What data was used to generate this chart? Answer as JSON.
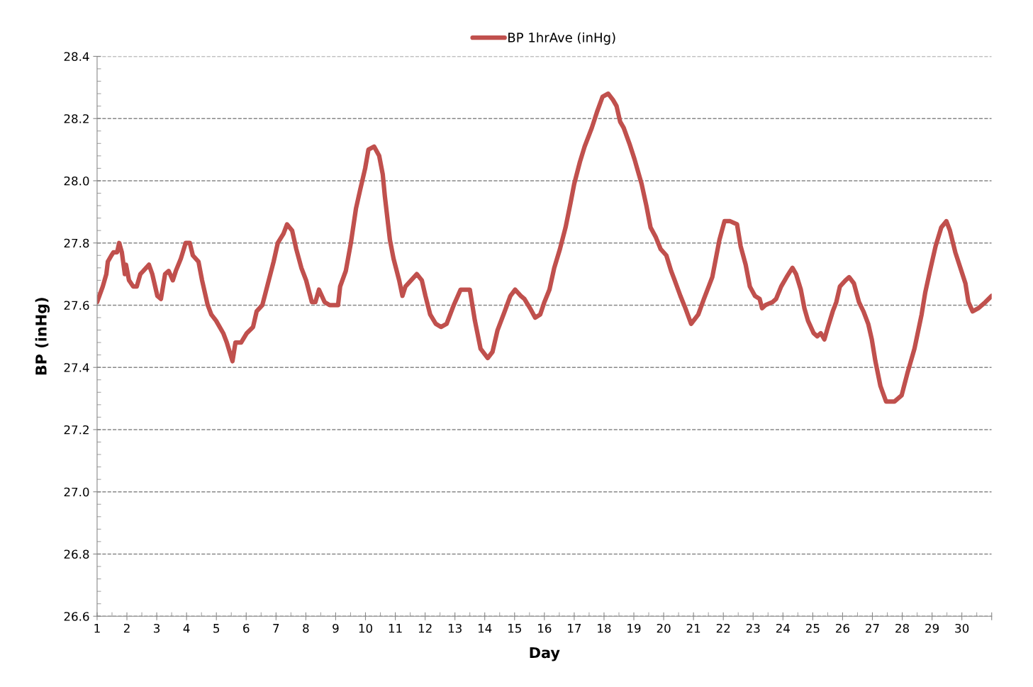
{
  "chart_data": {
    "type": "line",
    "xlabel": "Day",
    "ylabel": "BP (inHg)",
    "legend": "top",
    "grid": "y",
    "marker": "none",
    "line_style": "solid",
    "xlim": [
      1,
      31
    ],
    "ylim": [
      26.6,
      28.4
    ],
    "xticks": [
      1,
      2,
      3,
      4,
      5,
      6,
      7,
      8,
      9,
      10,
      11,
      12,
      13,
      14,
      15,
      16,
      17,
      18,
      19,
      20,
      21,
      22,
      23,
      24,
      25,
      26,
      27,
      28,
      29,
      30,
      {
        "value": 31,
        "label": null
      }
    ],
    "yticks": [
      {
        "value": 26.6,
        "label": "26.6"
      },
      {
        "value": 26.8,
        "label": "26.8"
      },
      {
        "value": 27.0,
        "label": "27.0"
      },
      {
        "value": 27.2,
        "label": "27.2"
      },
      {
        "value": 27.4,
        "label": "27.4"
      },
      {
        "value": 27.6,
        "label": "27.6"
      },
      {
        "value": 27.8,
        "label": "27.8"
      },
      {
        "value": 28.0,
        "label": "28.0"
      },
      {
        "value": 28.2,
        "label": "28.2"
      },
      {
        "value": 28.4,
        "label": "28.4"
      }
    ],
    "series": [
      {
        "name": "BP 1hrAve (inHg)",
        "color": "#c0504d",
        "x": [
          1.0,
          1.19,
          1.31,
          1.36,
          1.48,
          1.55,
          1.67,
          1.74,
          1.83,
          1.93,
          1.97,
          2.07,
          2.21,
          2.33,
          2.45,
          2.55,
          2.74,
          2.85,
          3.02,
          3.14,
          3.28,
          3.4,
          3.54,
          3.64,
          3.81,
          3.97,
          4.11,
          4.21,
          4.4,
          4.52,
          4.71,
          4.83,
          4.99,
          5.23,
          5.35,
          5.54,
          5.64,
          5.83,
          6.02,
          6.23,
          6.35,
          6.54,
          6.73,
          6.92,
          7.06,
          7.25,
          7.37,
          7.54,
          7.68,
          7.85,
          8.01,
          8.2,
          8.32,
          8.44,
          8.63,
          8.8,
          8.92,
          9.08,
          9.15,
          9.34,
          9.51,
          9.68,
          9.82,
          9.99,
          10.1,
          10.29,
          10.46,
          10.58,
          10.65,
          10.82,
          10.94,
          11.13,
          11.24,
          11.34,
          11.53,
          11.72,
          11.89,
          12.01,
          12.17,
          12.36,
          12.53,
          12.72,
          12.96,
          13.19,
          13.31,
          13.5,
          13.67,
          13.86,
          14.1,
          14.26,
          14.43,
          14.67,
          14.86,
          15.02,
          15.21,
          15.33,
          15.52,
          15.69,
          15.86,
          16.0,
          16.17,
          16.33,
          16.52,
          16.71,
          16.88,
          17.0,
          17.19,
          17.35,
          17.59,
          17.76,
          17.95,
          18.14,
          18.3,
          18.42,
          18.54,
          18.66,
          18.85,
          19.02,
          19.14,
          19.26,
          19.42,
          19.56,
          19.73,
          19.9,
          20.09,
          20.25,
          20.37,
          20.56,
          20.73,
          20.92,
          21.16,
          21.35,
          21.51,
          21.63,
          21.75,
          21.87,
          22.04,
          22.23,
          22.46,
          22.58,
          22.75,
          22.89,
          23.06,
          23.22,
          23.3,
          23.41,
          23.65,
          23.77,
          23.94,
          24.12,
          24.25,
          24.32,
          24.44,
          24.6,
          24.72,
          24.84,
          25.03,
          25.15,
          25.27,
          25.39,
          25.51,
          25.67,
          25.79,
          25.91,
          26.1,
          26.22,
          26.38,
          26.55,
          26.7,
          26.86,
          26.98,
          27.1,
          27.27,
          27.46,
          27.74,
          27.98,
          28.17,
          28.41,
          28.65,
          28.77,
          28.93,
          29.12,
          29.31,
          29.48,
          29.6,
          29.78,
          29.95,
          30.12,
          30.22,
          30.36,
          30.55,
          30.79,
          31.0
        ],
        "values": [
          27.61,
          27.66,
          27.7,
          27.74,
          27.76,
          27.77,
          27.77,
          27.8,
          27.77,
          27.7,
          27.73,
          27.68,
          27.66,
          27.66,
          27.7,
          27.71,
          27.73,
          27.7,
          27.63,
          27.62,
          27.7,
          27.71,
          27.68,
          27.71,
          27.75,
          27.8,
          27.8,
          27.76,
          27.74,
          27.68,
          27.6,
          27.57,
          27.55,
          27.51,
          27.48,
          27.42,
          27.48,
          27.48,
          27.51,
          27.53,
          27.58,
          27.6,
          27.67,
          27.74,
          27.8,
          27.83,
          27.86,
          27.84,
          27.78,
          27.72,
          27.68,
          27.61,
          27.61,
          27.65,
          27.61,
          27.6,
          27.6,
          27.6,
          27.66,
          27.71,
          27.8,
          27.91,
          27.97,
          28.04,
          28.1,
          28.11,
          28.08,
          28.02,
          27.95,
          27.81,
          27.75,
          27.68,
          27.63,
          27.66,
          27.68,
          27.7,
          27.68,
          27.63,
          27.57,
          27.54,
          27.53,
          27.54,
          27.6,
          27.65,
          27.65,
          27.65,
          27.55,
          27.46,
          27.43,
          27.45,
          27.52,
          27.58,
          27.63,
          27.65,
          27.63,
          27.62,
          27.59,
          27.56,
          27.57,
          27.61,
          27.65,
          27.72,
          27.78,
          27.85,
          27.93,
          27.99,
          28.06,
          28.11,
          28.17,
          28.22,
          28.27,
          28.28,
          28.26,
          28.24,
          28.19,
          28.17,
          28.12,
          28.07,
          28.03,
          27.99,
          27.92,
          27.85,
          27.82,
          27.78,
          27.76,
          27.71,
          27.68,
          27.63,
          27.59,
          27.54,
          27.57,
          27.62,
          27.66,
          27.69,
          27.75,
          27.81,
          27.87,
          27.87,
          27.86,
          27.79,
          27.73,
          27.66,
          27.63,
          27.62,
          27.59,
          27.6,
          27.61,
          27.62,
          27.66,
          27.69,
          27.71,
          27.72,
          27.7,
          27.65,
          27.59,
          27.55,
          27.51,
          27.5,
          27.51,
          27.49,
          27.53,
          27.58,
          27.61,
          27.66,
          27.68,
          27.69,
          27.67,
          27.61,
          27.58,
          27.54,
          27.49,
          27.42,
          27.34,
          27.29,
          27.29,
          27.31,
          27.38,
          27.46,
          27.57,
          27.64,
          27.71,
          27.79,
          27.85,
          27.87,
          27.84,
          27.77,
          27.72,
          27.67,
          27.61,
          27.58,
          27.59,
          27.61,
          27.63
        ]
      }
    ]
  }
}
